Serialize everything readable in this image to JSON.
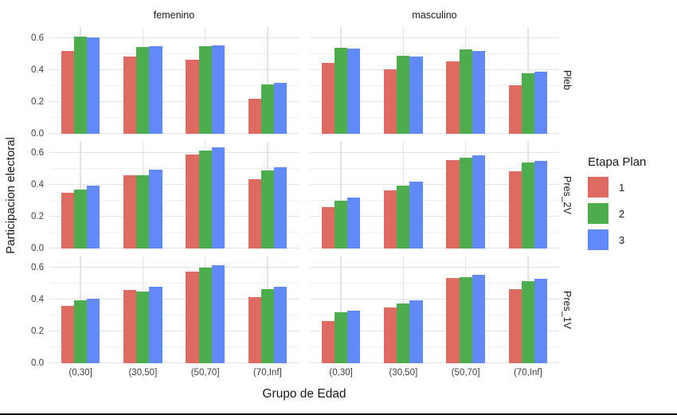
{
  "axes": {
    "y_title": "Participacion electoral",
    "x_title": "Grupo de Edad"
  },
  "chart_data": {
    "type": "bar",
    "title": "",
    "facet_cols": [
      "femenino",
      "masculino"
    ],
    "facet_rows": [
      "Pleb",
      "Pres_2V",
      "Pres_1V"
    ],
    "categories": [
      "(0,30]",
      "(30,50]",
      "(50,70]",
      "(70,Inf]"
    ],
    "xlabel": "Grupo de Edad",
    "ylabel": "Participacion electoral",
    "y_tick_labels": [
      "0.0",
      "0.2",
      "0.4",
      "0.6"
    ],
    "y_tick_values": [
      0.0,
      0.2,
      0.4,
      0.6
    ],
    "ylim": [
      0,
      0.67
    ],
    "grid": true,
    "legend": {
      "title": "Etapa Plan",
      "position": "right",
      "entries": [
        {
          "label": "1",
          "color": "#DE6B61"
        },
        {
          "label": "2",
          "color": "#4DAD4C"
        },
        {
          "label": "3",
          "color": "#6189F7"
        }
      ]
    },
    "panels": [
      {
        "facet_row": "Pleb",
        "facet_col": "femenino",
        "series": [
          {
            "name": "1",
            "values": [
              0.52,
              0.485,
              0.465,
              0.22
            ]
          },
          {
            "name": "2",
            "values": [
              0.61,
              0.545,
              0.55,
              0.31
            ]
          },
          {
            "name": "3",
            "values": [
              0.605,
              0.55,
              0.555,
              0.32
            ]
          }
        ]
      },
      {
        "facet_row": "Pleb",
        "facet_col": "masculino",
        "series": [
          {
            "name": "1",
            "values": [
              0.445,
              0.405,
              0.455,
              0.305
            ]
          },
          {
            "name": "2",
            "values": [
              0.54,
              0.49,
              0.53,
              0.38
            ]
          },
          {
            "name": "3",
            "values": [
              0.535,
              0.485,
              0.52,
              0.39
            ]
          }
        ]
      },
      {
        "facet_row": "Pres_2V",
        "facet_col": "femenino",
        "series": [
          {
            "name": "1",
            "values": [
              0.35,
              0.46,
              0.59,
              0.435
            ]
          },
          {
            "name": "2",
            "values": [
              0.37,
              0.46,
              0.615,
              0.49
            ]
          },
          {
            "name": "3",
            "values": [
              0.395,
              0.495,
              0.635,
              0.51
            ]
          }
        ]
      },
      {
        "facet_row": "Pres_2V",
        "facet_col": "masculino",
        "series": [
          {
            "name": "1",
            "values": [
              0.26,
              0.365,
              0.555,
              0.485
            ]
          },
          {
            "name": "2",
            "values": [
              0.3,
              0.395,
              0.57,
              0.54
            ]
          },
          {
            "name": "3",
            "values": [
              0.32,
              0.42,
              0.585,
              0.55
            ]
          }
        ]
      },
      {
        "facet_row": "Pres_1V",
        "facet_col": "femenino",
        "series": [
          {
            "name": "1",
            "values": [
              0.36,
              0.46,
              0.575,
              0.415
            ]
          },
          {
            "name": "2",
            "values": [
              0.395,
              0.45,
              0.6,
              0.465
            ]
          },
          {
            "name": "3",
            "values": [
              0.405,
              0.48,
              0.615,
              0.48
            ]
          }
        ]
      },
      {
        "facet_row": "Pres_1V",
        "facet_col": "masculino",
        "series": [
          {
            "name": "1",
            "values": [
              0.265,
              0.35,
              0.535,
              0.465
            ]
          },
          {
            "name": "2",
            "values": [
              0.32,
              0.375,
              0.54,
              0.515
            ]
          },
          {
            "name": "3",
            "values": [
              0.33,
              0.395,
              0.555,
              0.53
            ]
          }
        ]
      }
    ],
    "colors": {
      "grid_major": "#e3e3e3",
      "grid_minor": "#f0f0f0",
      "axis_text": "#404040",
      "title_text": "#1a1a1a"
    }
  }
}
